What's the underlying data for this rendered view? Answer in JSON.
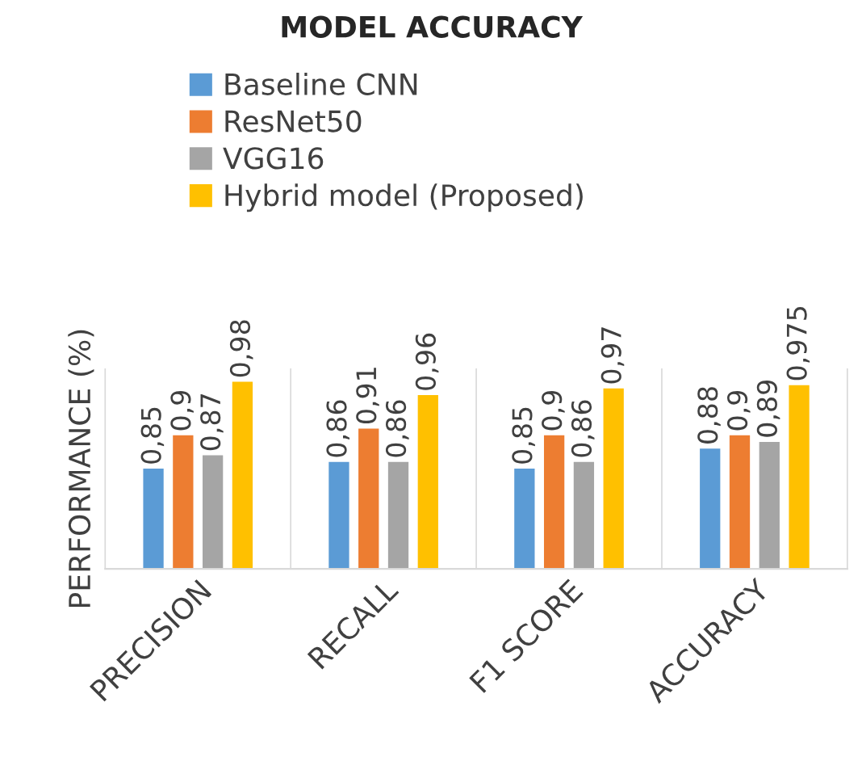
{
  "chart_data": {
    "type": "bar",
    "title": "MODEL ACCURACY",
    "ylabel": "PERFORMANCE (%)",
    "categories": [
      "PRECISION",
      "RECALL",
      "F1 SCORE",
      "ACCURACY"
    ],
    "series": [
      {
        "name": "Baseline CNN",
        "color": "#5b9bd5",
        "values": [
          0.85,
          0.86,
          0.85,
          0.88
        ],
        "value_labels": [
          "0,85",
          "0,86",
          "0,85",
          "0,88"
        ]
      },
      {
        "name": "ResNet50",
        "color": "#ed7d31",
        "values": [
          0.9,
          0.91,
          0.9,
          0.9
        ],
        "value_labels": [
          "0,9",
          "0,91",
          "0,9",
          "0,9"
        ]
      },
      {
        "name": "VGG16",
        "color": "#a5a5a5",
        "values": [
          0.87,
          0.86,
          0.86,
          0.89
        ],
        "value_labels": [
          "0,87",
          "0,86",
          "0,86",
          "0,89"
        ]
      },
      {
        "name": "Hybrid model (Proposed)",
        "color": "#ffc000",
        "values": [
          0.98,
          0.96,
          0.97,
          0.975
        ],
        "value_labels": [
          "0,98",
          "0,96",
          "0,97",
          "0,975"
        ]
      }
    ],
    "ylim": [
      0.7,
      1.0
    ],
    "tick_labels": "x",
    "legend": "top",
    "grid": false
  }
}
